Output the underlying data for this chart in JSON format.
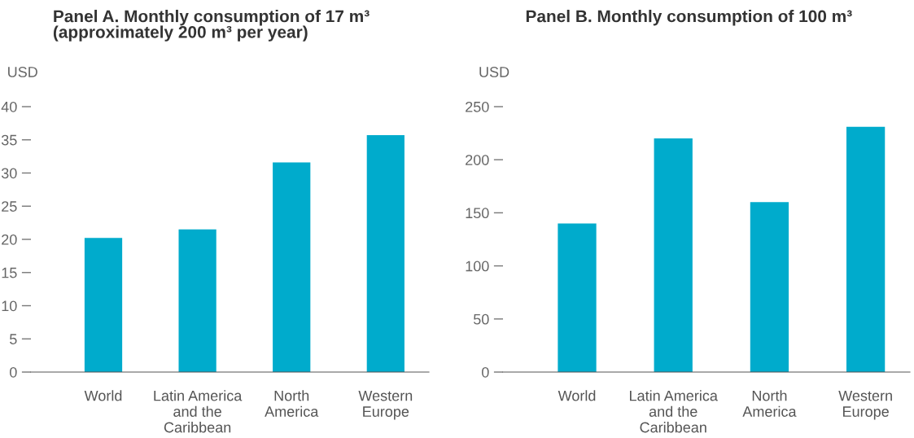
{
  "chart_data": [
    {
      "type": "bar",
      "title": "Panel A. Monthly consumption of 17 m³\n(approximately 200 m³ per year)",
      "ylabel": "USD",
      "categories": [
        "World",
        "Latin America\nand the\nCaribbean",
        "North\nAmerica",
        "Western\nEurope"
      ],
      "values": [
        20.2,
        21.5,
        31.6,
        35.7
      ],
      "color": "#00abcc",
      "ylim": [
        0,
        40
      ],
      "yticks": [
        0,
        5,
        10,
        15,
        20,
        25,
        30,
        35,
        40
      ],
      "grid": false
    },
    {
      "type": "bar",
      "title": "Panel B. Monthly consumption of 100 m³",
      "ylabel": "USD",
      "categories": [
        "World",
        "Latin America\nand the\nCaribbean",
        "North\nAmerica",
        "Western\nEurope"
      ],
      "values": [
        140,
        220,
        160,
        231
      ],
      "color": "#00abcc",
      "ylim": [
        0,
        250
      ],
      "yticks": [
        0,
        50,
        100,
        150,
        200,
        250
      ],
      "grid": false
    }
  ]
}
